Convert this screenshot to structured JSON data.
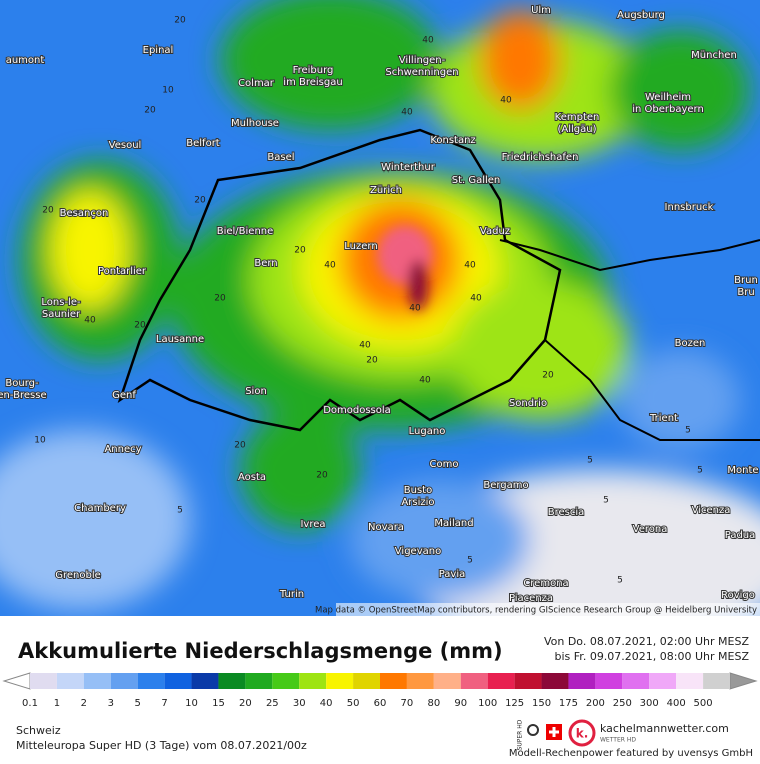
{
  "map": {
    "attribution": "Map data © OpenStreetMap contributors, rendering GIScience Research Group @ Heidelberg University",
    "places": [
      [
        "Ulm"
      ],
      [
        "Augsburg"
      ],
      [
        "Epinal"
      ],
      [
        "Freiburg",
        "im Breisgau"
      ],
      [
        "Villingen-",
        "Schwenningen"
      ],
      [
        "München"
      ],
      [
        "aumont"
      ],
      [
        "Colmar"
      ],
      [
        "Weilheim",
        "in Oberbayern"
      ],
      [
        "Mulhouse"
      ],
      [
        "Kempten",
        "(Allgäu)"
      ],
      [
        "Konstanz"
      ],
      [
        "Vesoul"
      ],
      [
        "Belfort"
      ],
      [
        "Basel"
      ],
      [
        "Friedrichshafen"
      ],
      [
        "Winterthur"
      ],
      [
        "St. Gallen"
      ],
      [
        "Zürich"
      ],
      [
        "Innsbruck"
      ],
      [
        "Besançon"
      ],
      [
        "Biel/Bienne"
      ],
      [
        "Vaduz"
      ],
      [
        "Luzern"
      ],
      [
        "Bern"
      ],
      [
        "Pontarlier"
      ],
      [
        "Brun",
        "Bru"
      ],
      [
        "Lons-le-",
        "Saunier"
      ],
      [
        "Lausanne"
      ],
      [
        "Bozen"
      ],
      [
        "Bourg-",
        "en-Bresse"
      ],
      [
        "Sion"
      ],
      [
        "Genf"
      ],
      [
        "Sondrio"
      ],
      [
        "Domodossola"
      ],
      [
        "Trient"
      ],
      [
        "Lugano"
      ],
      [
        "Annecy"
      ],
      [
        "Como"
      ],
      [
        "Monte"
      ],
      [
        "Aosta"
      ],
      [
        "Bergamo"
      ],
      [
        "Busto",
        "Arsizio"
      ],
      [
        "Chambery"
      ],
      [
        "Brescia"
      ],
      [
        "Vicenza"
      ],
      [
        "Mailand"
      ],
      [
        "Novara"
      ],
      [
        "Verona"
      ],
      [
        "Ivrea"
      ],
      [
        "Padua"
      ],
      [
        "Vigevano"
      ],
      [
        "Grenoble"
      ],
      [
        "Pavia"
      ],
      [
        "Cremona"
      ],
      [
        "Turin"
      ],
      [
        "Rovigo"
      ],
      [
        "Piacenza"
      ]
    ],
    "contour_labels": [
      40,
      40,
      40,
      20,
      20,
      20,
      40,
      40,
      40,
      20,
      20,
      5,
      5,
      10,
      5,
      20,
      40,
      40,
      20,
      5,
      20,
      40,
      5,
      20,
      10,
      5,
      40,
      20,
      5,
      20
    ]
  },
  "legend": {
    "title": "Akkumulierte Niederschlagsmenge (mm)",
    "period_from": "Von Do. 08.07.2021, 02:00 Uhr MESZ",
    "period_to": "bis Fr. 09.07.2021, 08:00 Uhr MESZ",
    "classes": [
      {
        "value": 0.1,
        "color": "#e0dcf0"
      },
      {
        "value": 1,
        "color": "#c4d6f8"
      },
      {
        "value": 2,
        "color": "#96bff6"
      },
      {
        "value": 3,
        "color": "#64a0f0"
      },
      {
        "value": 5,
        "color": "#2c80ec"
      },
      {
        "value": 7,
        "color": "#1062e0"
      },
      {
        "value": 10,
        "color": "#0a3aa8"
      },
      {
        "value": 15,
        "color": "#0a8a22"
      },
      {
        "value": 20,
        "color": "#20aa20"
      },
      {
        "value": 25,
        "color": "#46ca18"
      },
      {
        "value": 30,
        "color": "#9ee412"
      },
      {
        "value": 40,
        "color": "#f8f400"
      },
      {
        "value": 50,
        "color": "#e0d400"
      },
      {
        "value": 60,
        "color": "#ff7800"
      },
      {
        "value": 70,
        "color": "#ff9840"
      },
      {
        "value": 80,
        "color": "#ffb088"
      },
      {
        "value": 90,
        "color": "#f06080"
      },
      {
        "value": 100,
        "color": "#e82050"
      },
      {
        "value": 125,
        "color": "#c01030"
      },
      {
        "value": 150,
        "color": "#8c0838"
      },
      {
        "value": 175,
        "color": "#b020c0"
      },
      {
        "value": 200,
        "color": "#d040e0"
      },
      {
        "value": 250,
        "color": "#e070f0"
      },
      {
        "value": 300,
        "color": "#f0a8f8"
      },
      {
        "value": 400,
        "color": "#f8e4f8"
      },
      {
        "value": 500,
        "color": "#d0d0d0"
      }
    ]
  },
  "footer": {
    "region": "Schweiz",
    "model": "Mitteleuropa Super HD (3 Tage) vom 08.07.2021/00z",
    "super_hd": "SUPER HD",
    "brand": "kachelmannwetter.com",
    "brand_sub": "WETTER HD",
    "credit": "Modell-Rechenpower featured by uvensys GmbH"
  }
}
